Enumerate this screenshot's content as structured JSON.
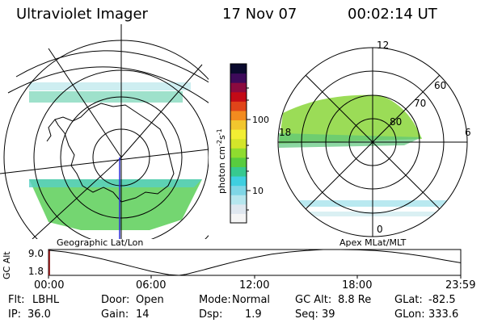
{
  "header": {
    "title": "Ultraviolet Imager",
    "date": "17 Nov 07",
    "time": "00:02:14 UT"
  },
  "left_panel": {
    "caption": "Geographic Lat/Lon"
  },
  "right_panel": {
    "caption": "Apex MLat/MLT",
    "mlt_labels": [
      "12",
      "18",
      "6",
      "0"
    ],
    "mlat_labels": [
      "60",
      "70",
      "80"
    ]
  },
  "colorbar": {
    "label": "photon cm",
    "label_sup1": "-2",
    "label_mid": "s",
    "label_sup2": "-1",
    "ticks": [
      "100",
      "10"
    ],
    "colors": [
      "#f5f5f5",
      "#dfe7ef",
      "#b6e6ee",
      "#7fd6e6",
      "#3fcfe0",
      "#37c98f",
      "#58cc3f",
      "#8fdc2f",
      "#d3e52a",
      "#f2ee33",
      "#f2c62e",
      "#f28b1f",
      "#e04419",
      "#c30a16",
      "#8b0a3f",
      "#3d0a5a",
      "#0a0a2e"
    ]
  },
  "altitude_plot": {
    "ylabel": "GC Alt",
    "yticks": [
      "9.0",
      "1.8"
    ],
    "xticks": [
      "00:00",
      "06:00",
      "12:00",
      "18:00",
      "23:59"
    ],
    "series": {
      "hours": [
        0,
        1,
        2,
        3,
        4,
        5,
        6,
        7,
        7.6,
        8,
        9,
        10,
        11,
        12,
        13,
        14,
        15,
        16,
        17,
        18,
        19,
        20,
        21,
        22,
        23,
        23.98
      ],
      "altitude_re": [
        8.8,
        8.3,
        7.5,
        6.5,
        5.3,
        4.1,
        2.9,
        2.0,
        1.8,
        2.1,
        3.3,
        4.6,
        5.8,
        6.8,
        7.7,
        8.3,
        8.7,
        9.0,
        9.0,
        8.9,
        8.7,
        8.3,
        7.7,
        7.0,
        6.1,
        5.3
      ]
    },
    "current_marker_hour": 0.04,
    "ylim": [
      1.8,
      9.0
    ]
  },
  "status": {
    "filter_label": "Flt:",
    "filter_value": "LBHL",
    "ip_label": "IP:",
    "ip_value": "36.0",
    "door_label": "Door:",
    "door_value": "Open",
    "gain_label": "Gain:",
    "gain_value": "14",
    "mode_label": "Mode:",
    "mode_value": "Normal",
    "dsp_label": "Dsp:",
    "dsp_value": "1.9",
    "gcalt_label": "GC Alt:",
    "gcalt_value": "8.8 Re",
    "seq_label": "Seq:",
    "seq_value": "39",
    "glat_label": "GLat:",
    "glat_value": "-82.5",
    "glon_label": "GLon:",
    "glon_value": "333.6"
  }
}
